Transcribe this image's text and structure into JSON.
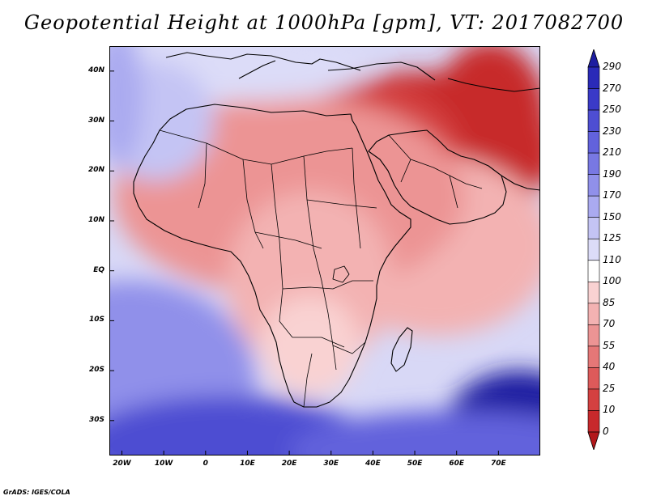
{
  "title": "Geopotential Height at 1000hPa [gpm], VT: 2017082700",
  "credit": "GrADS: IGES/COLA",
  "map": {
    "region": "Africa, Arabian Peninsula and western Indian Ocean",
    "lon_range": [
      -23,
      80
    ],
    "lat_range": [
      -37,
      45
    ],
    "lat_ticks": [
      {
        "value": 40,
        "label": "40N"
      },
      {
        "value": 30,
        "label": "30N"
      },
      {
        "value": 20,
        "label": "20N"
      },
      {
        "value": 10,
        "label": "10N"
      },
      {
        "value": 0,
        "label": "EQ"
      },
      {
        "value": -10,
        "label": "10S"
      },
      {
        "value": -20,
        "label": "20S"
      },
      {
        "value": -30,
        "label": "30S"
      }
    ],
    "lon_ticks": [
      {
        "value": -20,
        "label": "20W"
      },
      {
        "value": -10,
        "label": "10W"
      },
      {
        "value": 0,
        "label": "0"
      },
      {
        "value": 10,
        "label": "10E"
      },
      {
        "value": 20,
        "label": "20E"
      },
      {
        "value": 30,
        "label": "30E"
      },
      {
        "value": 40,
        "label": "40E"
      },
      {
        "value": 50,
        "label": "50E"
      },
      {
        "value": 60,
        "label": "60E"
      },
      {
        "value": 70,
        "label": "70E"
      }
    ]
  },
  "colorbar": {
    "levels": [
      "0",
      "10",
      "25",
      "40",
      "55",
      "70",
      "85",
      "100",
      "110",
      "125",
      "150",
      "170",
      "190",
      "210",
      "230",
      "250",
      "270",
      "290"
    ],
    "colors": [
      "#b2181b",
      "#c7292c",
      "#d44040",
      "#dd5a5a",
      "#e57777",
      "#ec9494",
      "#f3b2b2",
      "#f9d2d2",
      "#ffffff",
      "#dcdcf8",
      "#c4c4f4",
      "#aaaaf0",
      "#9090ea",
      "#7878e3",
      "#6262dc",
      "#4e4ed2",
      "#3a3ac8",
      "#2a2ab8",
      "#1e1ea0"
    ]
  },
  "fields": {
    "blobs": [
      {
        "lon": 52,
        "lat": 24,
        "rx": 32,
        "ry": 16,
        "value": 0
      },
      {
        "lon": 68,
        "lat": 30,
        "rx": 14,
        "ry": 16,
        "value": 0
      },
      {
        "lon": 40,
        "lat": 20,
        "rx": 22,
        "ry": 18,
        "value": 22
      },
      {
        "lon": 55,
        "lat": 5,
        "rx": 28,
        "ry": 18,
        "value": 72
      },
      {
        "lon": 20,
        "lat": 15,
        "rx": 42,
        "ry": 20,
        "value": 62
      },
      {
        "lon": 25,
        "lat": -2,
        "rx": 20,
        "ry": 18,
        "value": 78
      },
      {
        "lon": 25,
        "lat": -15,
        "rx": 12,
        "ry": 10,
        "value": 90
      },
      {
        "lon": 10,
        "lat": 41,
        "rx": 30,
        "ry": 7,
        "value": 112
      },
      {
        "lon": -12,
        "lat": 30,
        "rx": 14,
        "ry": 12,
        "value": 125
      },
      {
        "lon": -18,
        "lat": -22,
        "rx": 30,
        "ry": 20,
        "value": 175
      },
      {
        "lon": 5,
        "lat": -35,
        "rx": 35,
        "ry": 10,
        "value": 240
      },
      {
        "lon": 75,
        "lat": -32,
        "rx": 18,
        "ry": 12,
        "value": 300
      },
      {
        "lon": 60,
        "lat": -36,
        "rx": 40,
        "ry": 8,
        "value": 220
      },
      {
        "lon": -21,
        "lat": 35,
        "rx": 6,
        "ry": 14,
        "value": 150
      }
    ]
  }
}
